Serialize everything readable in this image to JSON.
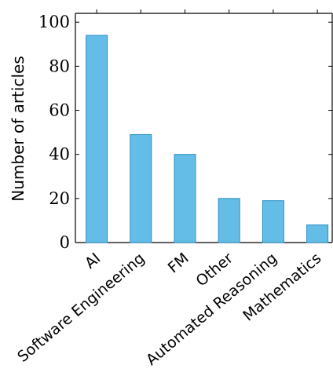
{
  "chart_data": {
    "type": "bar",
    "title": "",
    "xlabel": "",
    "ylabel": "Number of articles",
    "categories": [
      "AI",
      "Software Engineering",
      "FM",
      "Other",
      "Automated Reasoning",
      "Mathematics"
    ],
    "values": [
      94,
      49,
      40,
      20,
      19,
      8
    ],
    "ylim": [
      0,
      104
    ],
    "yticks": [
      0,
      20,
      40,
      60,
      80,
      100
    ],
    "grid": false,
    "legend": "none",
    "colors": {
      "bar_fill": "#64bde6",
      "bar_stroke": "#2a8fc4",
      "axis": "#000000",
      "text": "#000000"
    }
  }
}
